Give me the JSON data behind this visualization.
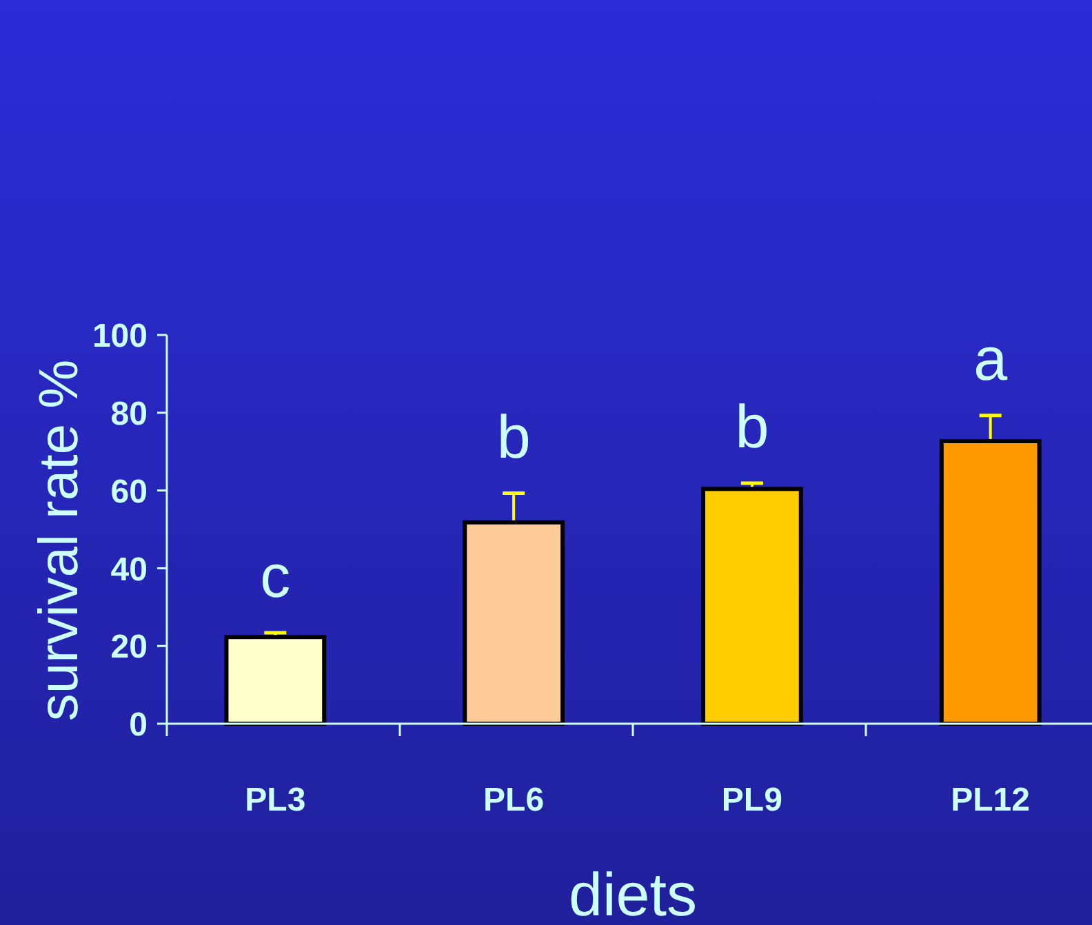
{
  "chart_data": {
    "type": "bar",
    "xlabel": "diets",
    "ylabel": "survival rate %",
    "categories": [
      "PL3",
      "PL6",
      "PL9",
      "PL12"
    ],
    "values": [
      22.3,
      51.8,
      60.4,
      72.7
    ],
    "colors": [
      "#ffffcc",
      "#ffcc99",
      "#ffcc00",
      "#ff9900"
    ],
    "errors": [
      1.1,
      7.5,
      1.5,
      6.6
    ],
    "ylim": [
      0,
      100
    ],
    "yticks": [
      0,
      20,
      40,
      60,
      80,
      100
    ],
    "grid": false,
    "annotations": [
      "c",
      "b",
      "b",
      "a"
    ]
  }
}
